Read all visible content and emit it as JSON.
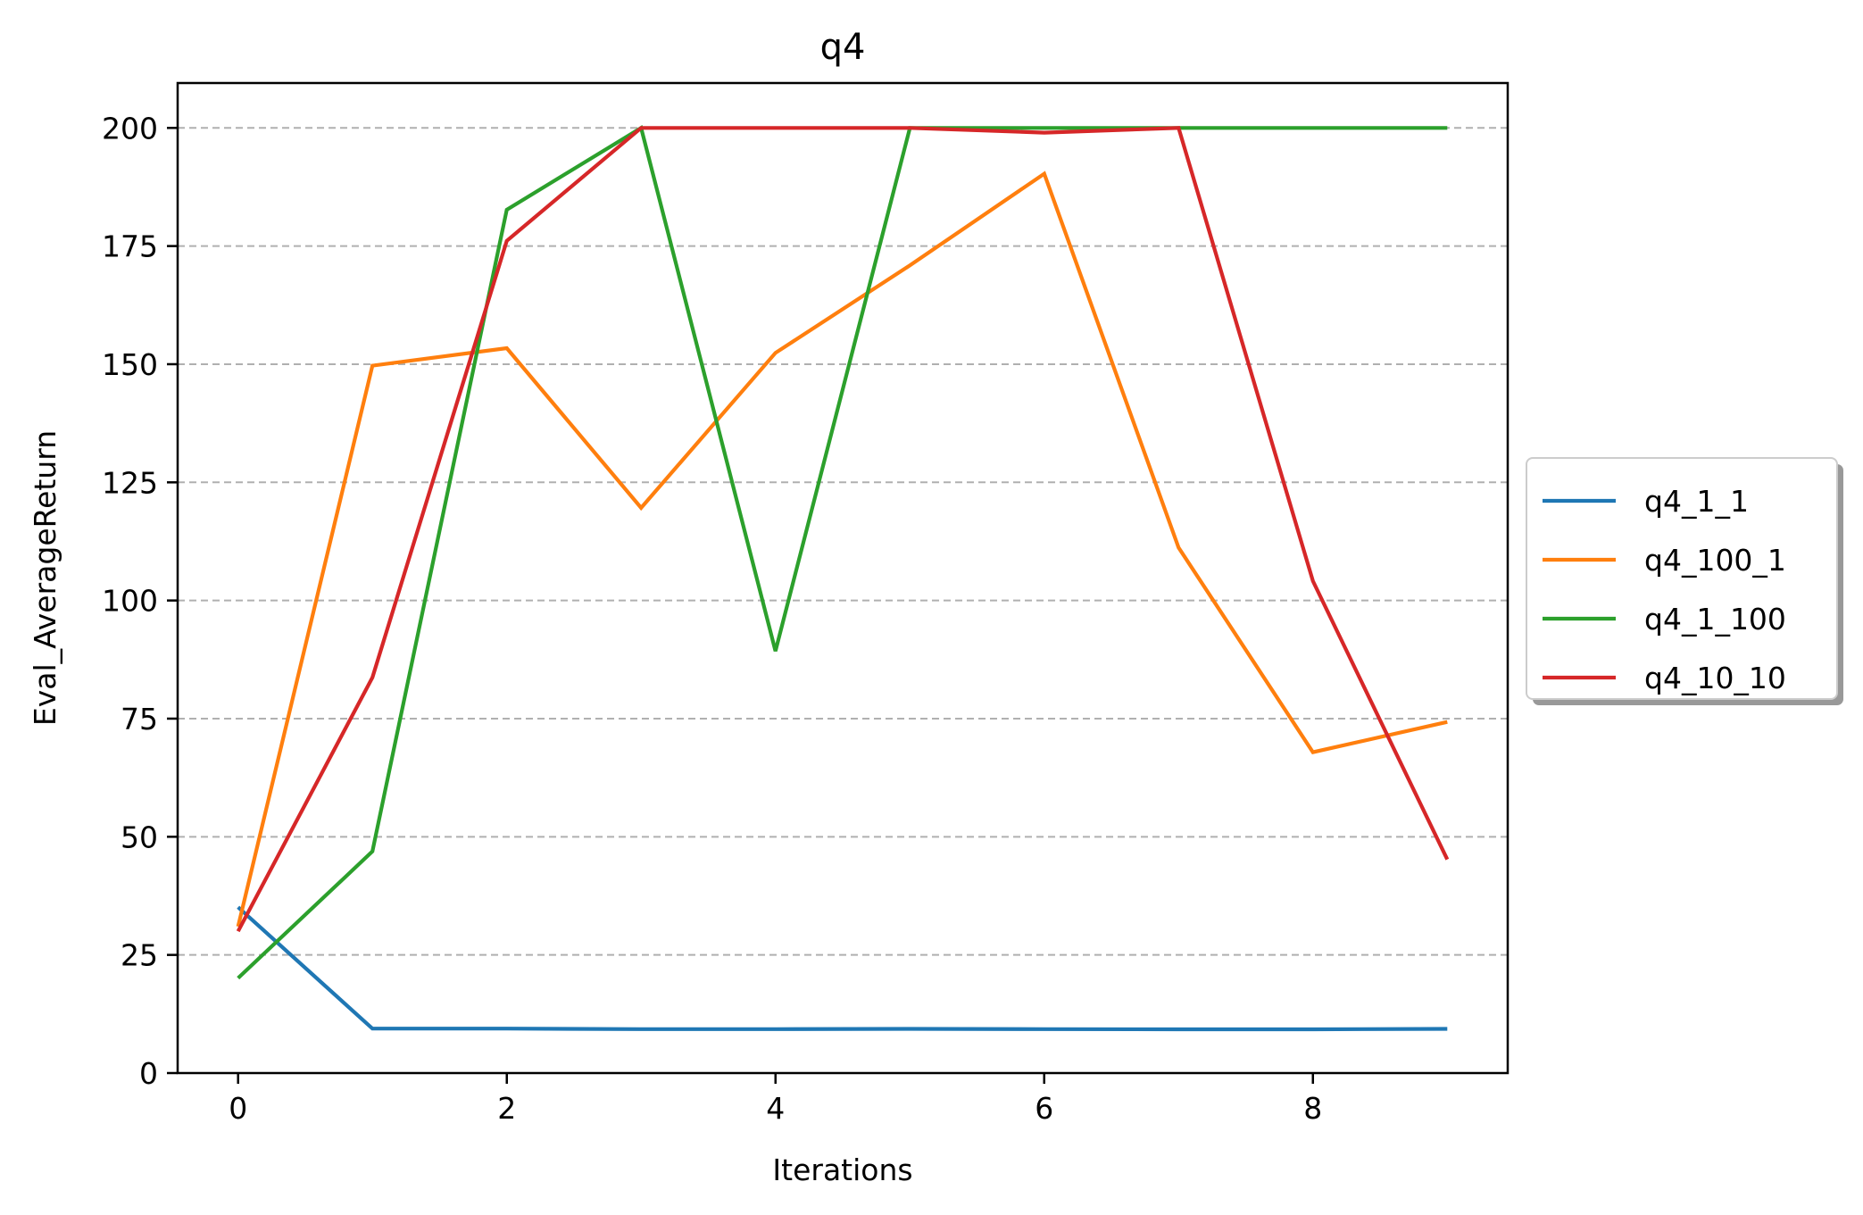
{
  "chart_data": {
    "type": "line",
    "title": "q4",
    "xlabel": "Iterations",
    "ylabel": "Eval_AverageReturn",
    "x": [
      0,
      1,
      2,
      3,
      4,
      5,
      6,
      7,
      8,
      9
    ],
    "xlim": [
      -0.45,
      9.45
    ],
    "ylim": [
      0,
      209.5
    ],
    "xticks": [
      0,
      2,
      4,
      6,
      8
    ],
    "yticks": [
      0,
      25,
      50,
      75,
      100,
      125,
      150,
      175,
      200
    ],
    "grid": "horizontal, dashed",
    "legend_position": "outside right, center",
    "series": [
      {
        "name": "q4_1_1",
        "color": "#1f77b4",
        "values": [
          35.1,
          9.4,
          9.4,
          9.3,
          9.3,
          9.35,
          9.3,
          9.25,
          9.25,
          9.35
        ]
      },
      {
        "name": "q4_100_1",
        "color": "#ff7f0e",
        "values": [
          31,
          149.7,
          153.4,
          119.6,
          152.4,
          170.9,
          190.3,
          111.2,
          67.9,
          74.3
        ]
      },
      {
        "name": "q4_1_100",
        "color": "#2ca02c",
        "values": [
          20.1,
          46.9,
          182.7,
          200,
          89.3,
          200,
          200,
          200,
          200,
          200
        ]
      },
      {
        "name": "q4_10_10",
        "color": "#d62728",
        "values": [
          30,
          83.7,
          176.1,
          200,
          200,
          200,
          199,
          200,
          104.1,
          45.2
        ]
      }
    ]
  }
}
